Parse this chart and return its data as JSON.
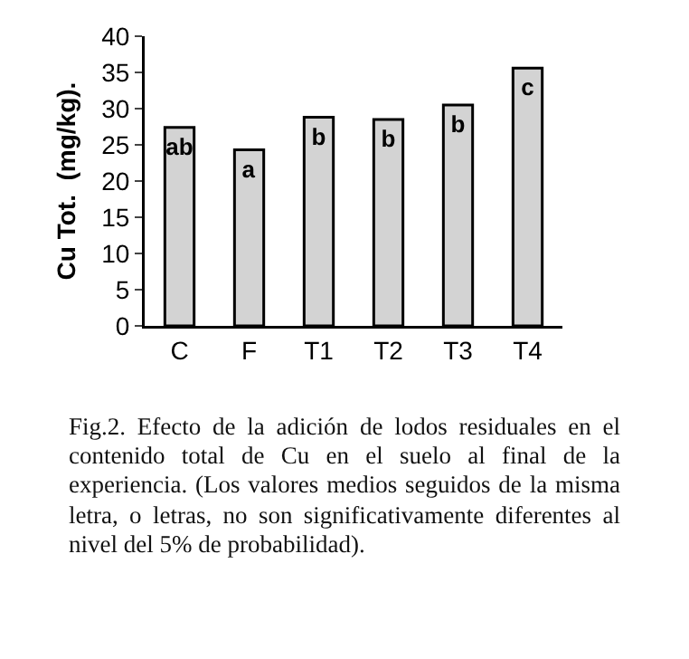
{
  "chart_data": {
    "type": "bar",
    "ylabel": "Cu Tot.  (mg/kg).",
    "categories": [
      "C",
      "F",
      "T1",
      "T2",
      "T3",
      "T4"
    ],
    "values": [
      27.4,
      24.3,
      28.8,
      28.5,
      30.5,
      35.6
    ],
    "color": "#d3d3d3",
    "ylim": [
      0,
      40
    ],
    "yticks": [
      0,
      5,
      10,
      15,
      20,
      25,
      30,
      35,
      40
    ],
    "grid": false,
    "legend": false,
    "value_labels": [
      "ab",
      "a",
      "b",
      "b",
      "b",
      "c"
    ],
    "annotations": [
      "Fig.2. Efecto de la adición de lodos residuales en el contenido total de Cu en el suelo al final de la experiencia. (Los valores medios seguidos de la misma letra, o letras, no son significativamente diferentes al nivel del 5% de probabilidad)."
    ]
  }
}
